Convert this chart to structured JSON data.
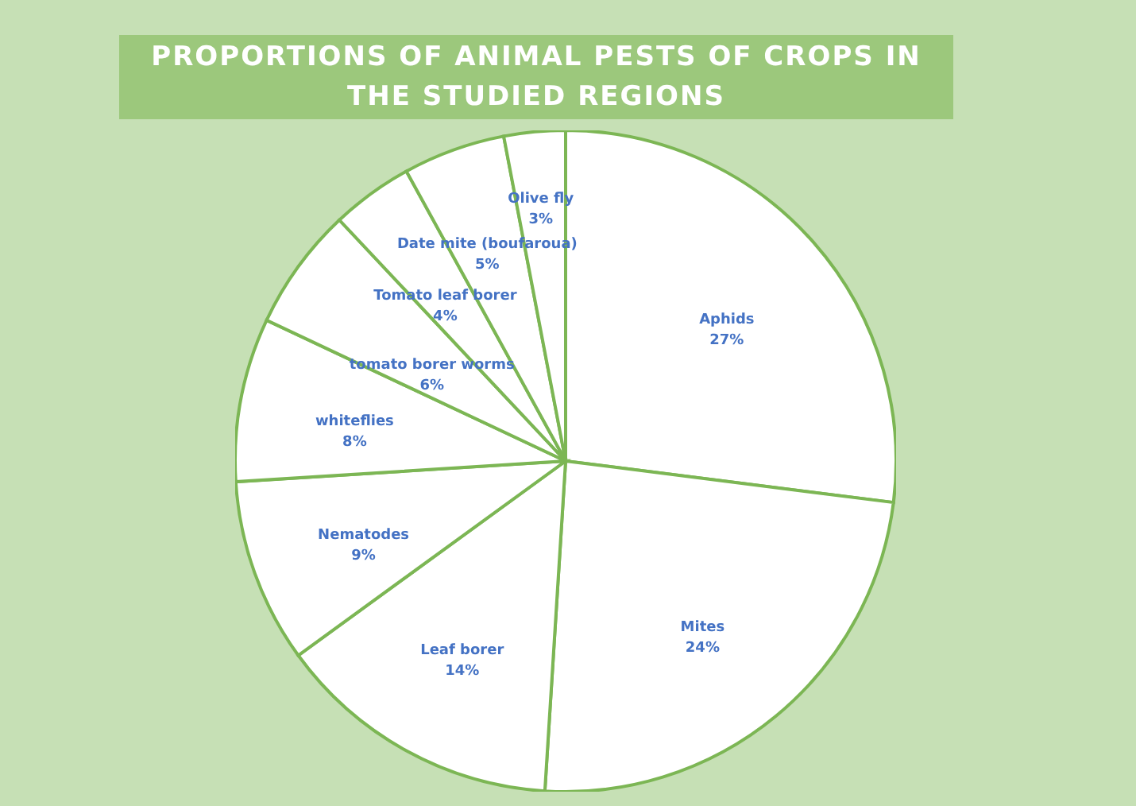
{
  "chart_data": {
    "type": "pie",
    "title": "PROPORTIONS OF ANIMAL PESTS OF CROPS IN THE STUDIED REGIONS",
    "categories": [
      "Aphids",
      "Mites",
      "Leaf borer",
      "Nematodes",
      "whiteflies",
      "tomato borer worms",
      "Tomato leaf borer",
      "Date mite (boufaroua)",
      "Olive fly"
    ],
    "values": [
      27,
      24,
      14,
      9,
      8,
      6,
      4,
      5,
      3
    ],
    "value_labels": [
      "27%",
      "24%",
      "14%",
      "9%",
      "8%",
      "6%",
      "4%",
      "5%",
      "3%"
    ],
    "colors": [
      "#ffffff",
      "#ffffff",
      "#ffffff",
      "#ffffff",
      "#ffffff",
      "#ffffff",
      "#ffffff",
      "#ffffff",
      "#ffffff"
    ]
  }
}
